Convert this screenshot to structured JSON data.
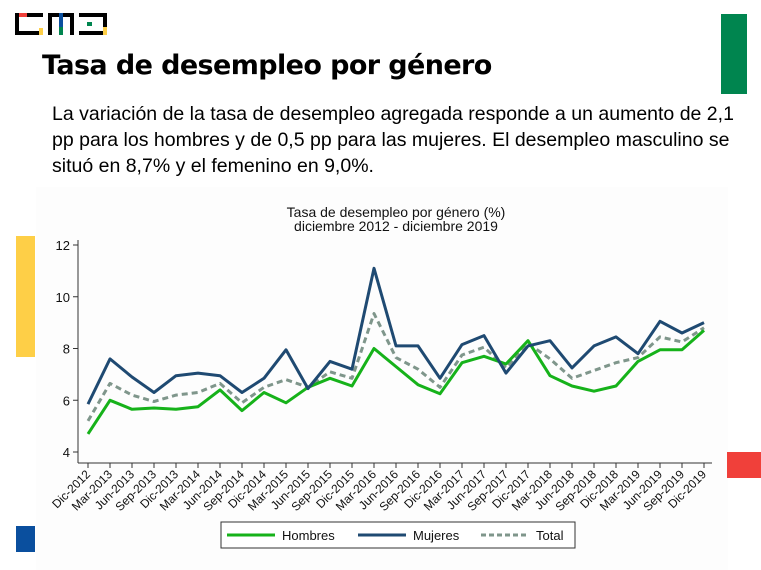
{
  "header": {
    "logo_alt": "cmd logo",
    "title": "Tasa de desempleo por género",
    "paragraph": "La variación de la tasa de desempleo agregada responde a un aumento de 2,1 pp para los hombres y de 0,5 pp para las mujeres. El desempleo masculino se situó en 8,7% y el femenino en 9,0%."
  },
  "colors": {
    "brand_green": "#00854f",
    "brand_yellow": "#fecf47",
    "brand_blue": "#0a4f9e",
    "brand_red": "#f0403a",
    "hombres": "#16b21a",
    "mujeres": "#1f4a72",
    "total": "#7f968b"
  },
  "chart_data": {
    "type": "line",
    "title": "Tasa de desempleo por género (%)",
    "subtitle": "diciembre 2012 - diciembre 2019",
    "xlabel": "",
    "ylabel": "",
    "ylim": [
      4,
      12
    ],
    "yticks": [
      4,
      6,
      8,
      10,
      12
    ],
    "grid": false,
    "legend_position": "bottom",
    "x": [
      "Dic-2012",
      "Mar-2013",
      "Jun-2013",
      "Sep-2013",
      "Dic-2013",
      "Mar-2014",
      "Jun-2014",
      "Sep-2014",
      "Dic-2014",
      "Mar-2015",
      "Jun-2015",
      "Sep-2015",
      "Dic-2015",
      "Mar-2016",
      "Jun-2016",
      "Sep-2016",
      "Dic-2016",
      "Mar-2017",
      "Jun-2017",
      "Sep-2017",
      "Dic-2017",
      "Mar-2018",
      "Jun-2018",
      "Sep-2018",
      "Dic-2018",
      "Mar-2019",
      "Jun-2019",
      "Sep-2019",
      "Dic-2019"
    ],
    "series": [
      {
        "name": "Hombres",
        "style": "solid",
        "values": [
          4.7,
          6.0,
          5.65,
          5.7,
          5.65,
          5.75,
          6.4,
          5.6,
          6.3,
          5.9,
          6.5,
          6.85,
          6.55,
          8.0,
          7.3,
          6.6,
          6.25,
          7.45,
          7.7,
          7.4,
          8.3,
          6.95,
          6.55,
          6.35,
          6.55,
          7.5,
          7.95,
          7.95,
          8.7
        ]
      },
      {
        "name": "Mujeres",
        "style": "solid",
        "values": [
          5.85,
          7.6,
          6.9,
          6.3,
          6.95,
          7.05,
          6.95,
          6.3,
          6.85,
          7.95,
          6.45,
          7.5,
          7.2,
          11.1,
          8.1,
          8.1,
          6.85,
          8.15,
          8.5,
          7.05,
          8.1,
          8.3,
          7.25,
          8.1,
          8.45,
          7.8,
          9.05,
          8.6,
          9.0
        ]
      },
      {
        "name": "Total",
        "style": "dashed",
        "values": [
          5.2,
          6.65,
          6.2,
          5.95,
          6.2,
          6.3,
          6.65,
          5.9,
          6.5,
          6.8,
          6.5,
          7.1,
          6.85,
          9.35,
          7.65,
          7.2,
          6.5,
          7.75,
          8.05,
          7.25,
          8.2,
          7.6,
          6.85,
          7.15,
          7.45,
          7.65,
          8.45,
          8.25,
          8.8
        ]
      }
    ]
  }
}
